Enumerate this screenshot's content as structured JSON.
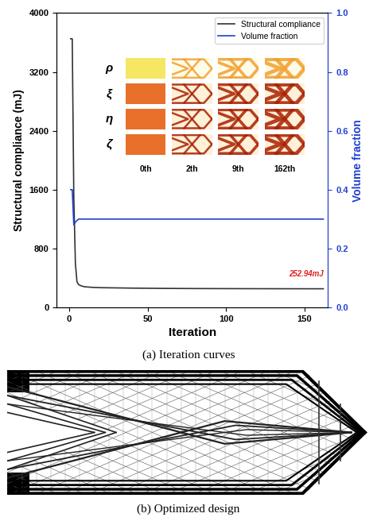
{
  "chart_data": {
    "type": "line",
    "xlabel": "Iteration",
    "ylabel": "Structural compliance (mJ)",
    "y2label": "Volume fraction",
    "x": [
      1,
      2,
      3,
      4,
      5,
      6,
      8,
      10,
      15,
      20,
      30,
      40,
      50,
      60,
      80,
      100,
      120,
      140,
      160,
      162
    ],
    "series": [
      {
        "name": "Structural compliance",
        "color": "#333333",
        "values": [
          3650,
          3650,
          1500,
          600,
          350,
          310,
          290,
          280,
          272,
          268,
          265,
          262,
          260,
          258,
          256,
          255,
          254,
          253.5,
          253,
          252.94
        ]
      },
      {
        "name": "Volume fraction",
        "color": "#1f3fd0",
        "axis": "y2",
        "values": [
          0.4,
          0.4,
          0.28,
          0.29,
          0.295,
          0.3,
          0.3,
          0.3,
          0.3,
          0.3,
          0.3,
          0.3,
          0.3,
          0.3,
          0.3,
          0.3,
          0.3,
          0.3,
          0.3,
          0.3
        ]
      }
    ],
    "xlim": [
      -8,
      165
    ],
    "xticks": [
      0,
      50,
      100,
      150
    ],
    "ylim": [
      0,
      4000
    ],
    "yticks": [
      0,
      800,
      1600,
      2400,
      3200,
      4000
    ],
    "y2lim": [
      0,
      1
    ],
    "y2ticks": [
      {
        "value": 0,
        "label": "0.0"
      },
      {
        "value": 0.2,
        "label": "0.2"
      },
      {
        "value": 0.4,
        "label": "0.4"
      },
      {
        "value": 0.6,
        "label": "0.6"
      },
      {
        "value": 0.8,
        "label": "0.8"
      },
      {
        "value": 1,
        "label": "1.0"
      }
    ],
    "legend": "upper right",
    "annotations": [
      {
        "text": "252.94mJ",
        "color": "#e02020"
      }
    ],
    "insets": {
      "rows": [
        "ρ",
        "ξ",
        "η",
        "ζ"
      ],
      "columns": [
        "0th",
        "2th",
        "9th",
        "162th"
      ]
    }
  },
  "captions": [
    "(a) Iteration curves",
    "(b) Optimized design"
  ]
}
